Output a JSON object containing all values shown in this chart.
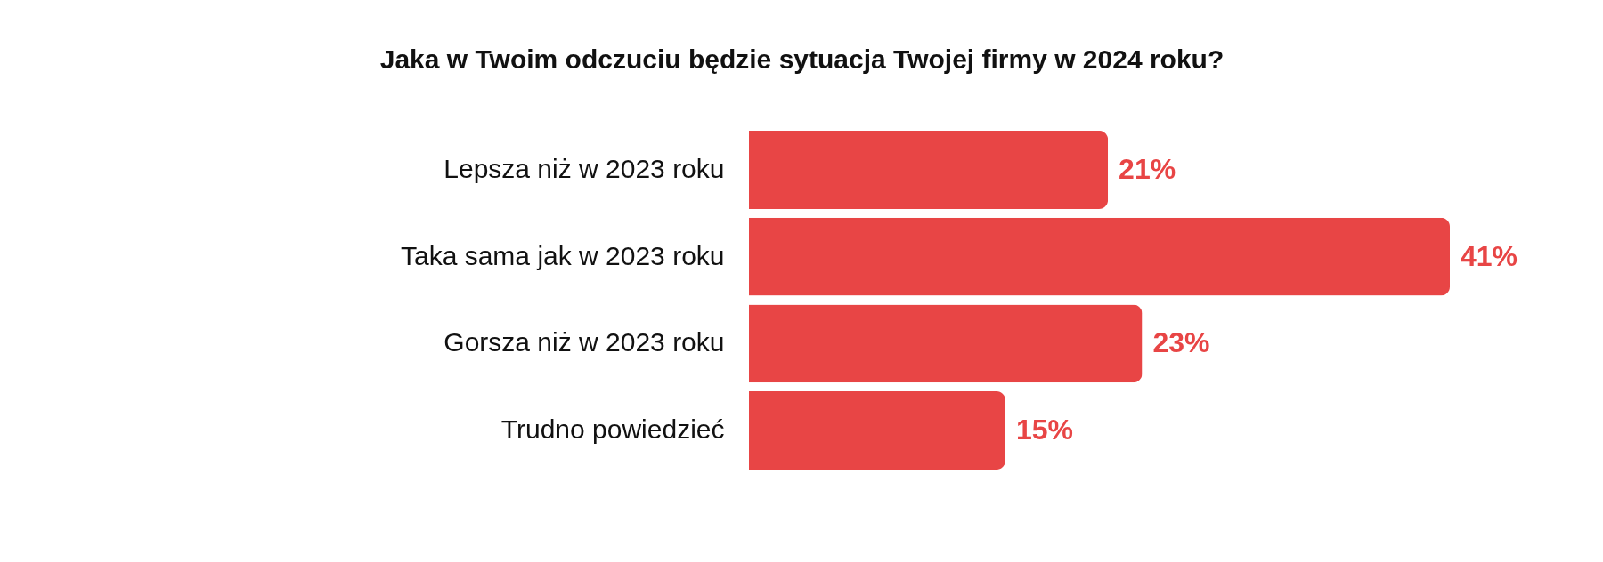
{
  "chart_data": {
    "type": "bar",
    "title": "Jaka w Twoim odczuciu będzie sytuacja Twojej firmy w 2024 roku?",
    "orientation": "horizontal",
    "categories": [
      "Lepsza niż w 2023 roku",
      "Taka sama jak w 2023 roku",
      "Gorsza niż w 2023 roku",
      "Trudno powiedzieć"
    ],
    "values": [
      21,
      41,
      23,
      15
    ],
    "value_labels": [
      "21%",
      "41%",
      "23%",
      "15%"
    ],
    "color": "#e84545"
  }
}
